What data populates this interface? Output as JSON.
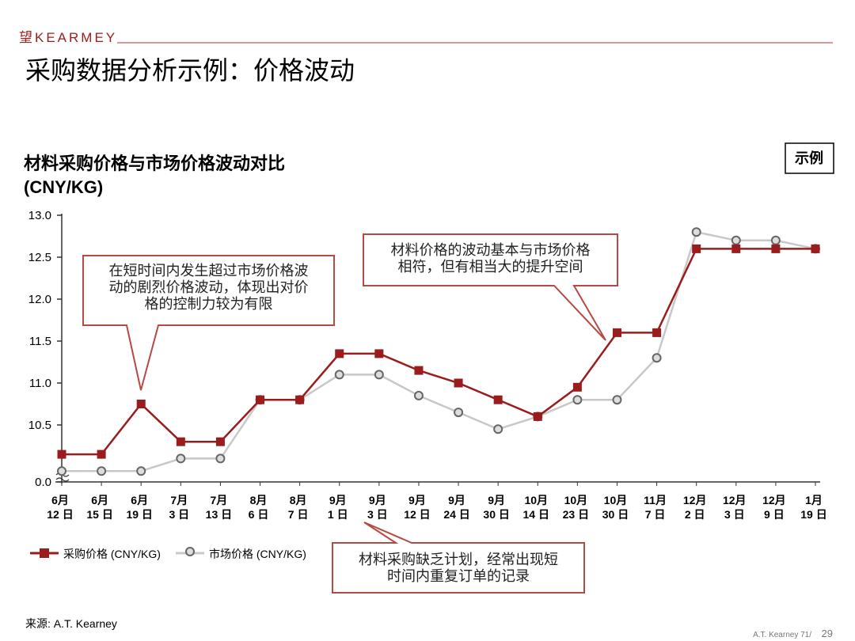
{
  "header": {
    "logo_mark": "望",
    "logo_text": "KEARMEY"
  },
  "page_title": "采购数据分析示例：价格波动",
  "badge": "示例",
  "chart_data": {
    "type": "line",
    "title": "材料采购价格与市场价格波动对比",
    "subtitle": "(CNY/KG)",
    "categories": [
      "6月\n12 日",
      "6月\n15 日",
      "6月\n19 日",
      "7月\n3 日",
      "7月\n13 日",
      "8月\n6 日",
      "8月\n7 日",
      "9月\n1 日",
      "9月\n3 日",
      "9月\n12 日",
      "9月\n24 日",
      "9月\n30 日",
      "10月\n14 日",
      "10月\n23 日",
      "10月\n30 日",
      "11月\n7 日",
      "12月\n2 日",
      "12月\n3 日",
      "12月\n9 日",
      "1月\n19 日"
    ],
    "series": [
      {
        "name": "采购价格 (CNY/KG)",
        "color": "#9b1c1c",
        "marker": "square",
        "values": [
          10.15,
          10.15,
          10.75,
          10.3,
          10.3,
          10.8,
          10.8,
          11.35,
          11.35,
          11.15,
          11.0,
          10.8,
          10.6,
          10.95,
          11.6,
          11.6,
          12.6,
          12.6,
          12.6,
          12.6
        ]
      },
      {
        "name": "市场价格 (CNY/KG)",
        "color": "#c8c8c8",
        "marker": "circle",
        "values": [
          9.95,
          9.95,
          9.95,
          10.1,
          10.1,
          10.8,
          10.8,
          11.1,
          11.1,
          10.85,
          10.65,
          10.45,
          10.6,
          10.8,
          10.8,
          11.3,
          12.8,
          12.7,
          12.7,
          12.6
        ]
      }
    ],
    "ylim": [
      0,
      13
    ],
    "yticks": [
      {
        "value": 0,
        "label": "0.0"
      },
      10.5,
      {
        "value": 11,
        "label": "11.0"
      },
      11.5,
      {
        "value": 12,
        "label": "12.0"
      },
      12.5,
      {
        "value": 13,
        "label": "13.0"
      }
    ],
    "axis_break": true,
    "annotations": [
      "在短时间内发生超过市场价格波\n动的剧烈价格波动，体现出对价\n格的控制力较为有限",
      "材料价格的波动基本与市场价格\n相符，但有相当大的提升空间",
      "材料采购缺乏计划，经常出现短\n时间内重复订单的记录"
    ]
  },
  "source": "来源: A.T. Kearney",
  "footer": {
    "text": "A.T.  Kearney  71/",
    "page": "29"
  }
}
